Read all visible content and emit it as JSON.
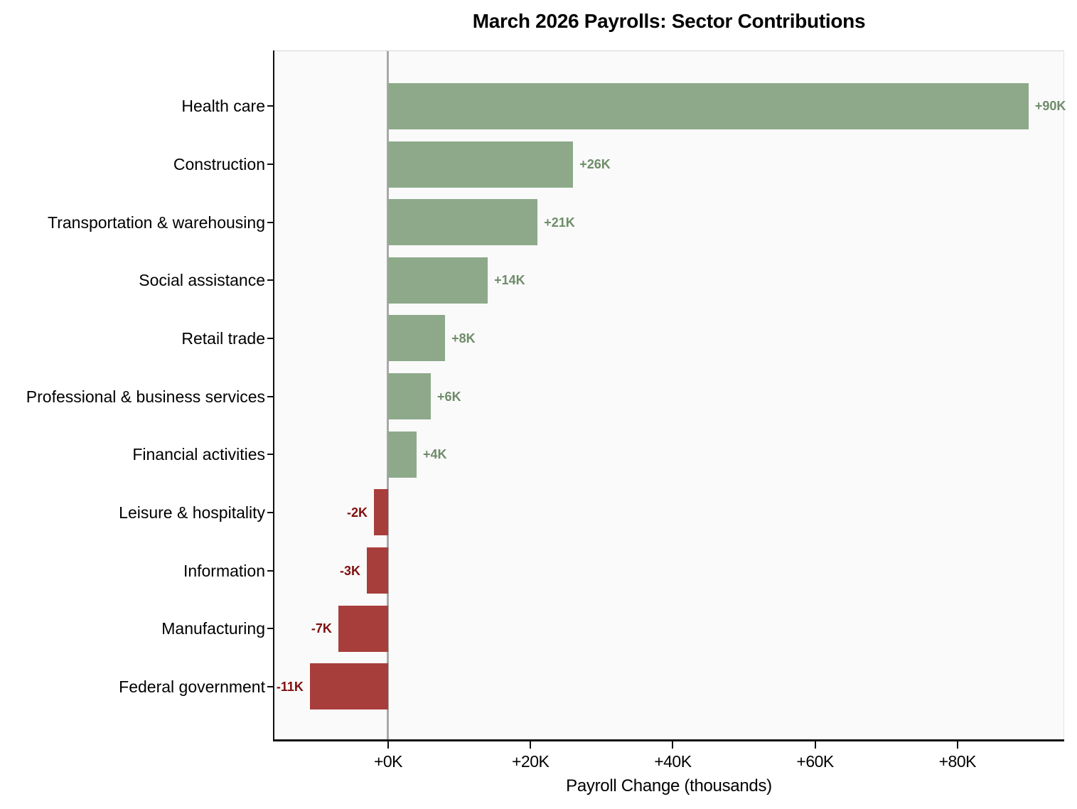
{
  "title": "March 2026 Payrolls: Sector Contributions",
  "chart_data": {
    "type": "bar",
    "orientation": "horizontal",
    "title": "March 2026 Payrolls: Sector Contributions",
    "xlabel": "Payroll Change (thousands)",
    "ylabel": "",
    "categories": [
      "Health care",
      "Construction",
      "Transportation & warehousing",
      "Social assistance",
      "Retail trade",
      "Professional & business services",
      "Financial activities",
      "Leisure & hospitality",
      "Information",
      "Manufacturing",
      "Federal government"
    ],
    "values": [
      90,
      26,
      21,
      14,
      8,
      6,
      4,
      -2,
      -3,
      -7,
      -11
    ],
    "value_labels": [
      "+90K",
      "+26K",
      "+21K",
      "+14K",
      "+8K",
      "+6K",
      "+4K",
      "-2K",
      "-3K",
      "-7K",
      "-11K"
    ],
    "xlim": [
      -16,
      95
    ],
    "xticks": [
      0,
      20,
      40,
      60,
      80
    ],
    "xtick_labels": [
      "+0K",
      "+20K",
      "+40K",
      "+60K",
      "+80K"
    ],
    "grid": false,
    "legend": "none",
    "zero_line": true,
    "colors": {
      "positive_bar": "#8DA98A",
      "negative_bar": "#A83E3B",
      "positive_label": "#6E8C69",
      "negative_label": "#7E100E",
      "zero_line": "#A8A8A8",
      "plot_background": "#FAFAFA",
      "figure_background": "#FFFFFF",
      "spine": "#0F0F0F"
    }
  }
}
